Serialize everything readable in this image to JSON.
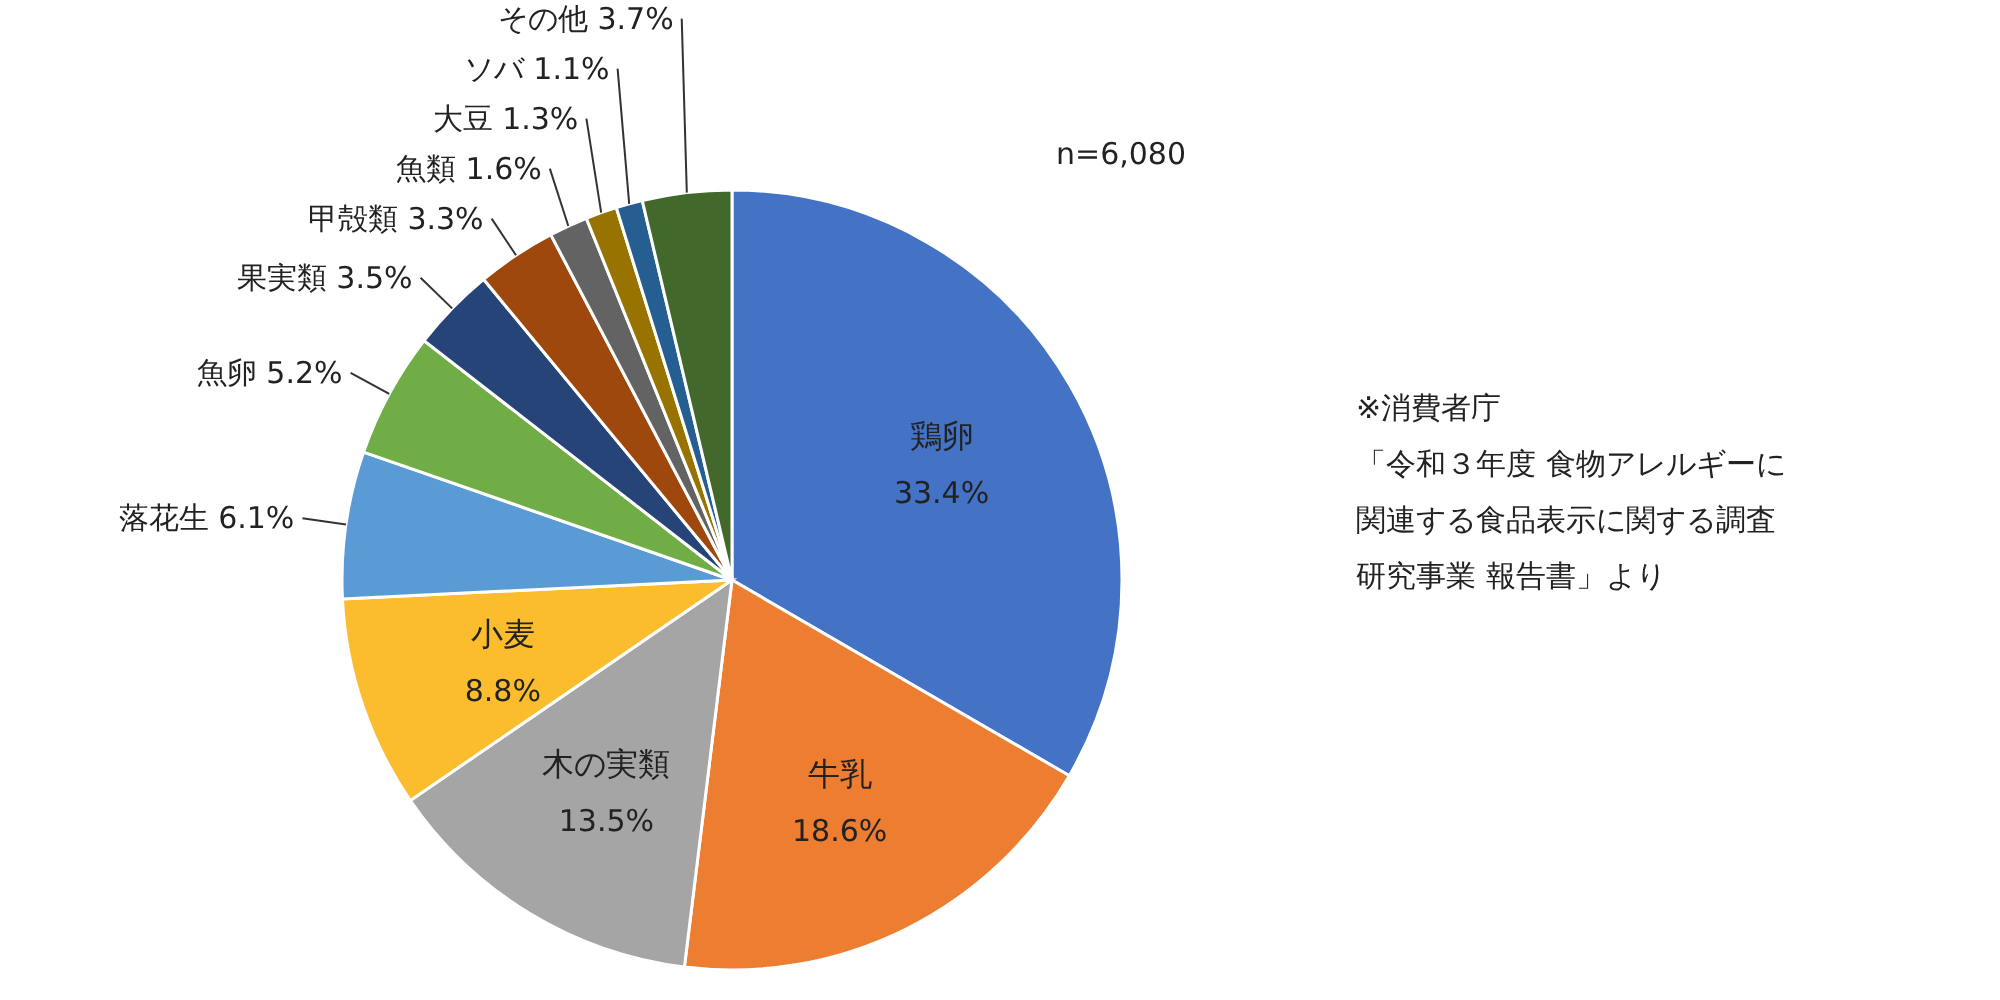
{
  "chart_data": {
    "type": "pie",
    "categories": [
      "鶏卵",
      "牛乳",
      "木の実類",
      "小麦",
      "落花生",
      "魚卵",
      "果実類",
      "甲殻類",
      "魚類",
      "大豆",
      "ソバ",
      "その他"
    ],
    "values": [
      33.4,
      18.6,
      13.5,
      8.8,
      6.1,
      5.2,
      3.5,
      3.3,
      1.6,
      1.3,
      1.1,
      3.7
    ],
    "colors": [
      "#4472c4",
      "#ed7d31",
      "#a5a5a5",
      "#fbbc2e",
      "#5b9bd5",
      "#70ad47",
      "#264478",
      "#9e480e",
      "#636363",
      "#997300",
      "#255e91",
      "#43682b"
    ],
    "value_labels": [
      "33.4%",
      "18.6%",
      "13.5%",
      "8.8%",
      "6.1%",
      "5.2%",
      "3.5%",
      "3.3%",
      "1.6%",
      "1.3%",
      "1.1%",
      "3.7%"
    ],
    "annotations": [
      "n=6,080",
      "※消費者庁",
      "「令和３年度 食物アレルギーに",
      "関連する食品表示に関する調査",
      "研究事業 報告書」より"
    ]
  }
}
